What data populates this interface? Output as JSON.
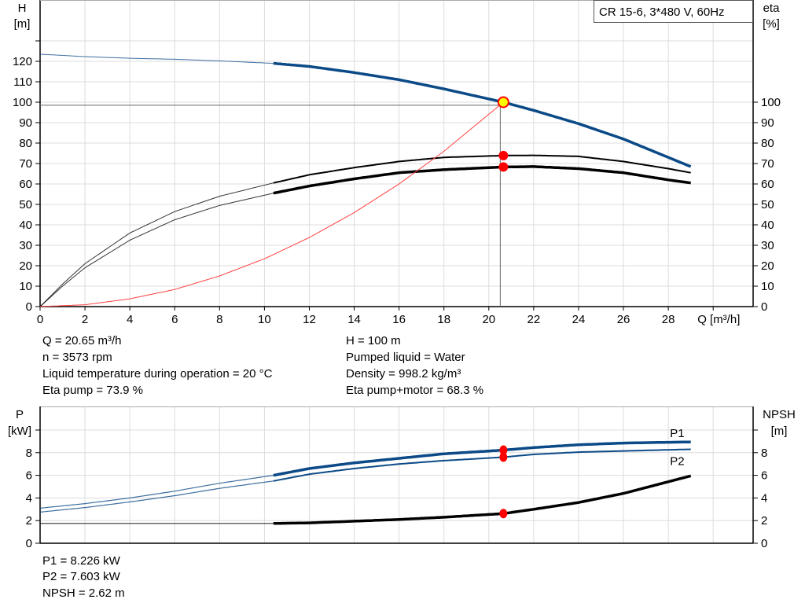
{
  "chart_data": [
    {
      "type": "line",
      "title": "CR 15-6, 3*480 V, 60Hz",
      "xlabel": "Q [m³/h]",
      "ylabel_left": "H\n[m]",
      "ylabel_left_lines": [
        "H",
        "[m]"
      ],
      "ylabel_right_lines": [
        "eta",
        "[%]"
      ],
      "xlim": [
        0,
        32
      ],
      "ylim_left": [
        0,
        135
      ],
      "ylim_right": [
        0,
        135
      ],
      "x_ticks": [
        0,
        2,
        4,
        6,
        8,
        10,
        12,
        14,
        16,
        18,
        20,
        22,
        24,
        26,
        28
      ],
      "y_ticks_left": [
        0,
        10,
        20,
        30,
        40,
        50,
        60,
        70,
        80,
        90,
        100,
        110,
        120
      ],
      "y_ticks_right": [
        0,
        10,
        20,
        30,
        40,
        50,
        60,
        70,
        80,
        90,
        100
      ],
      "grid": true,
      "legend": "top-right",
      "series": [
        {
          "key": "H",
          "color": "#0b4a87",
          "x": [
            0,
            2,
            4,
            6,
            8,
            10.4,
            12,
            14,
            16,
            18,
            20.65,
            22,
            24,
            26,
            29
          ],
          "y": [
            123.5,
            122.3,
            121.5,
            121,
            120.2,
            119,
            117.5,
            114.5,
            111,
            106.5,
            100,
            96,
            89.5,
            82,
            68.5
          ]
        },
        {
          "key": "eta_pump",
          "color": "#000000",
          "x": [
            0,
            1,
            2,
            4,
            6,
            8,
            10.4,
            12,
            14,
            16,
            18,
            20.65,
            22,
            24,
            26,
            28,
            29
          ],
          "y": [
            0,
            11,
            21,
            36,
            46.5,
            54,
            60.5,
            64.5,
            68,
            71,
            73,
            73.9,
            74,
            73.5,
            71,
            67.5,
            65.5
          ]
        },
        {
          "key": "eta_pump_motor",
          "color": "#000000",
          "x": [
            0,
            1,
            2,
            4,
            6,
            8,
            10.4,
            12,
            14,
            16,
            18,
            20.65,
            22,
            24,
            26,
            28,
            29
          ],
          "y": [
            0,
            10,
            19,
            32.5,
            42.5,
            49.5,
            55.5,
            59,
            62.5,
            65.5,
            67,
            68.3,
            68.5,
            67.5,
            65.5,
            62,
            60.5
          ]
        },
        {
          "key": "system_curve",
          "color": "#ff4040",
          "x": [
            0,
            2,
            4,
            6,
            8,
            10,
            12,
            14,
            16,
            18,
            20.65
          ],
          "y": [
            0,
            0.9,
            3.8,
            8.4,
            15,
            23.4,
            33.8,
            46,
            60,
            76,
            100
          ]
        }
      ],
      "duty_point": {
        "Q": 20.65,
        "H": 100,
        "eta_pump": 73.9,
        "eta_pump_motor": 68.3
      }
    },
    {
      "type": "line",
      "ylabel_left_lines": [
        "P",
        "[kW]"
      ],
      "ylabel_right_lines": [
        "NPSH",
        "[m]"
      ],
      "xlim": [
        0,
        32
      ],
      "ylim": [
        0,
        10.5
      ],
      "y_ticks_left": [
        0,
        2,
        4,
        6,
        8
      ],
      "y_ticks_right": [
        0,
        2,
        4,
        6,
        8
      ],
      "grid": true,
      "series": [
        {
          "name": "P1",
          "color": "#0b4a87",
          "x": [
            0,
            2,
            4,
            6,
            8,
            10.4,
            12,
            14,
            16,
            18,
            20.65,
            22,
            24,
            26,
            29
          ],
          "y": [
            3.1,
            3.5,
            4.0,
            4.6,
            5.3,
            6.0,
            6.6,
            7.1,
            7.5,
            7.9,
            8.226,
            8.45,
            8.7,
            8.85,
            8.95
          ]
        },
        {
          "name": "P2",
          "color": "#0b4a87",
          "x": [
            0,
            2,
            4,
            6,
            8,
            10.4,
            12,
            14,
            16,
            18,
            20.65,
            22,
            24,
            26,
            29
          ],
          "y": [
            2.75,
            3.15,
            3.65,
            4.2,
            4.85,
            5.5,
            6.1,
            6.6,
            7.0,
            7.3,
            7.603,
            7.85,
            8.05,
            8.15,
            8.3
          ]
        },
        {
          "key": "NPSH",
          "color": "#000000",
          "x": [
            0,
            10.4,
            12,
            14,
            16,
            18,
            20.65,
            22,
            24,
            26,
            29
          ],
          "y": [
            1.75,
            1.75,
            1.8,
            1.95,
            2.1,
            2.3,
            2.62,
            3.0,
            3.6,
            4.4,
            5.95
          ]
        }
      ],
      "duty_point": {
        "Q": 20.65,
        "P1": 8.226,
        "P2": 7.603,
        "NPSH": 2.62
      }
    }
  ],
  "info_top_left": [
    "Q = 20.65 m³/h",
    "n = 3573 rpm",
    "Liquid temperature during operation = 20 °C",
    "Eta pump = 73.9 %"
  ],
  "info_top_right": [
    "H = 100 m",
    "Pumped liquid = Water",
    "Density = 998.2 kg/m³",
    "Eta pump+motor = 68.3 %"
  ],
  "info_bottom": [
    "P1 = 8.226 kW",
    "P2 = 7.603 kW",
    "NPSH = 2.62 m"
  ]
}
